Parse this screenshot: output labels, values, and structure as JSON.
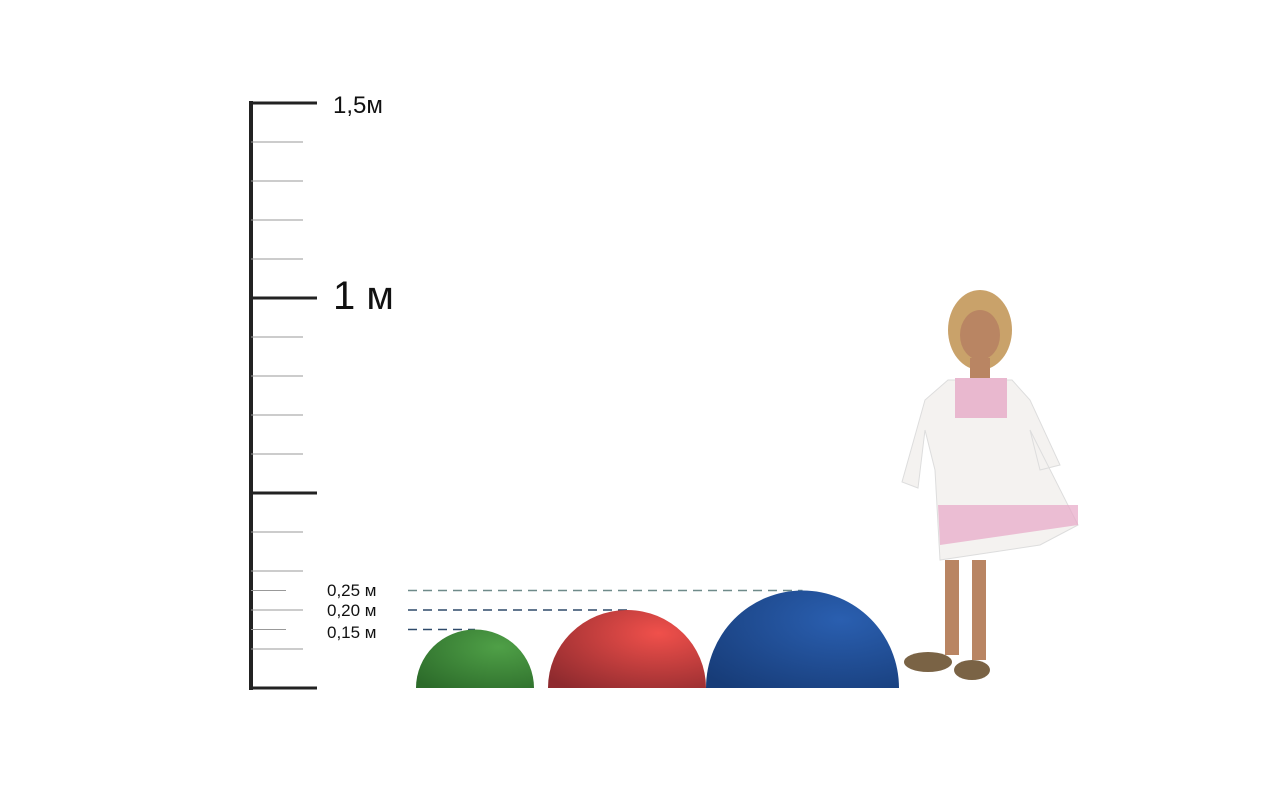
{
  "scale": {
    "labels": {
      "top": "1,5м",
      "mid": "1 м"
    },
    "max_m": 1.5,
    "major_step_m": 0.5,
    "minor_step_m": 0.1
  },
  "domes": [
    {
      "label": "0,15 м",
      "height_m": 0.15,
      "color": "#3f8a3a"
    },
    {
      "label": "0,20 м",
      "height_m": 0.2,
      "color": "#d7403e"
    },
    {
      "label": "0,25 м",
      "height_m": 0.25,
      "color": "#1f4e9a"
    }
  ],
  "figure": {
    "description_icon": "child-figure-icon"
  }
}
